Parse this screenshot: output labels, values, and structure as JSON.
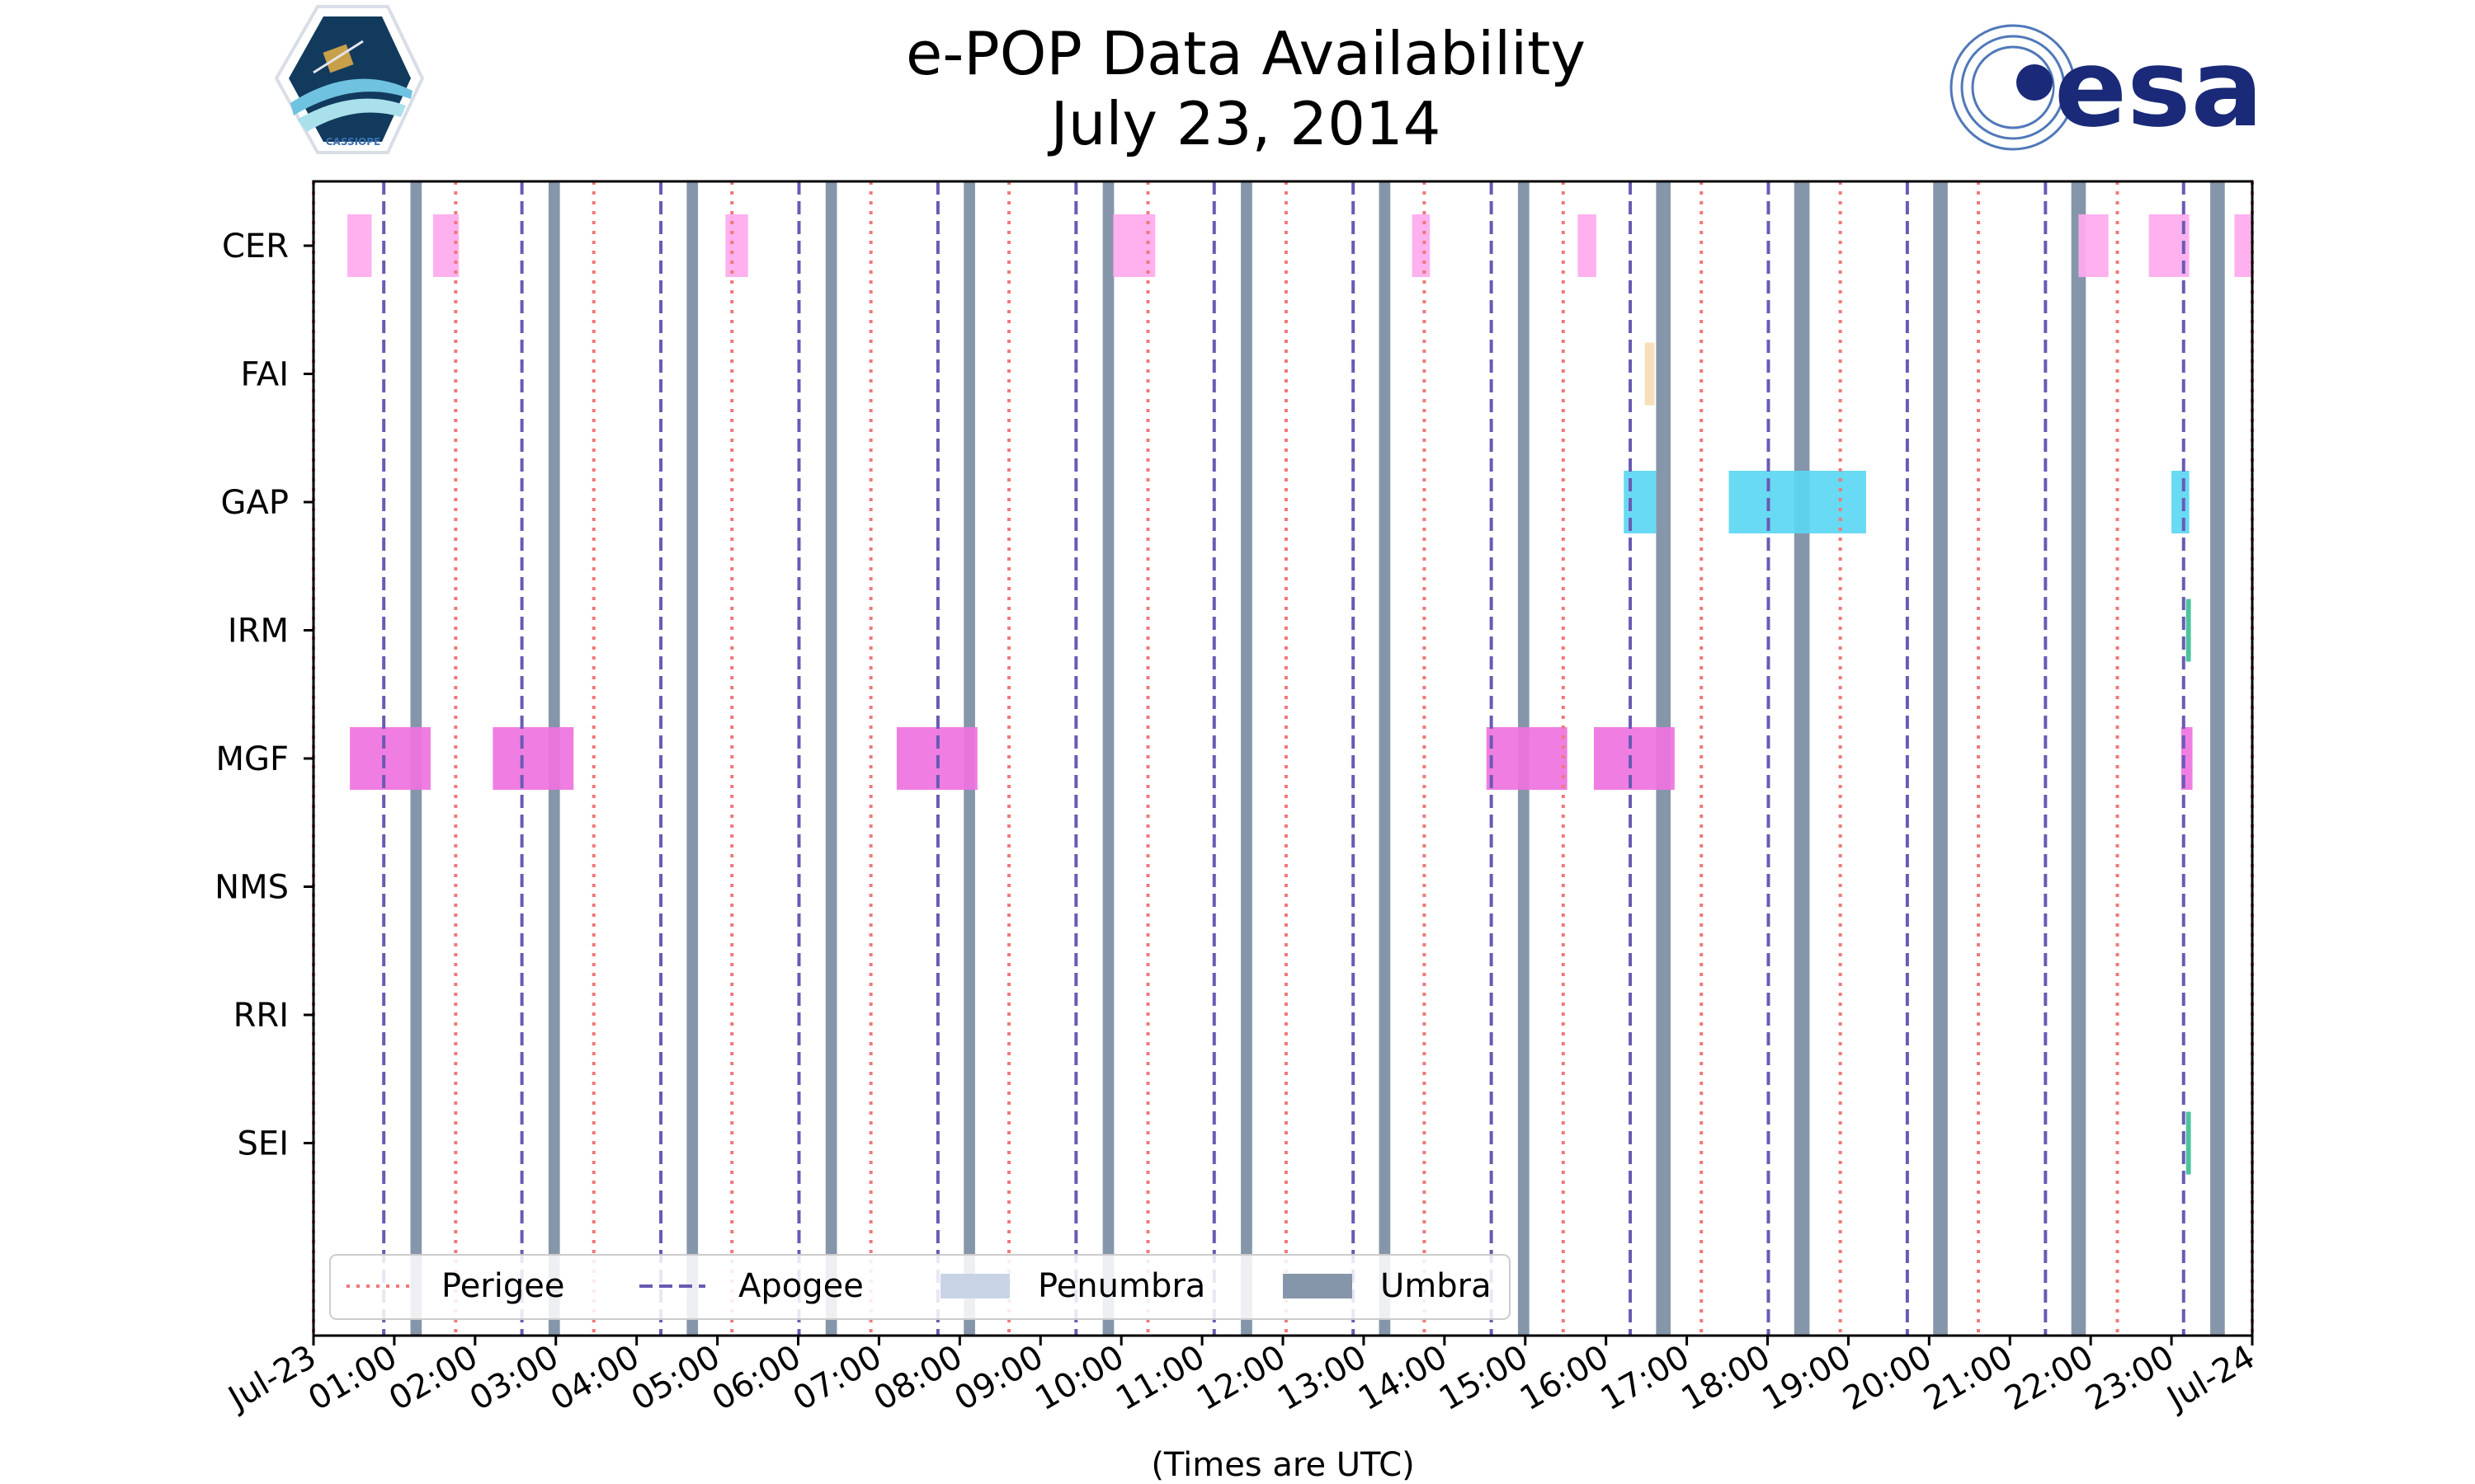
{
  "chart_data": {
    "type": "timeline",
    "title": "e-POP Data Availability",
    "subtitle": "July 23, 2014",
    "xlabel": "(Times are UTC)",
    "x_range_hours": [
      0,
      24
    ],
    "x_tick_labels": [
      "Jul-23",
      "01:00",
      "02:00",
      "03:00",
      "04:00",
      "05:00",
      "06:00",
      "07:00",
      "08:00",
      "09:00",
      "10:00",
      "11:00",
      "12:00",
      "13:00",
      "14:00",
      "15:00",
      "16:00",
      "17:00",
      "18:00",
      "19:00",
      "20:00",
      "21:00",
      "22:00",
      "23:00",
      "Jul-24"
    ],
    "instruments": [
      "CER",
      "FAI",
      "GAP",
      "IRM",
      "MGF",
      "NMS",
      "RRI",
      "SEI"
    ],
    "colors": {
      "CER": "#ffaaee",
      "FAI": "#f5dcb4",
      "GAP": "#5bd7f2",
      "IRM": "#3fbf94",
      "MGF": "#ef73df",
      "NMS": "#999999",
      "RRI": "#999999",
      "SEI": "#3fbf94",
      "perigee": "#f07878",
      "apogee": "#6a5ab4",
      "penumbra": "#c8d4e6",
      "umbra": "#8696aa"
    },
    "coverage": {
      "CER": [
        [
          0.42,
          0.72
        ],
        [
          1.48,
          1.8
        ],
        [
          5.1,
          5.38
        ],
        [
          9.9,
          10.42
        ],
        [
          13.6,
          13.82
        ],
        [
          15.65,
          15.88
        ],
        [
          21.85,
          22.22
        ],
        [
          22.72,
          23.22
        ],
        [
          23.78,
          24.0
        ]
      ],
      "FAI": [
        [
          16.48,
          16.6
        ]
      ],
      "GAP": [
        [
          16.22,
          16.62
        ],
        [
          17.52,
          19.22
        ],
        [
          23.0,
          23.22
        ]
      ],
      "IRM": [
        [
          23.18,
          23.24
        ]
      ],
      "MGF": [
        [
          0.45,
          1.45
        ],
        [
          2.22,
          3.22
        ],
        [
          7.22,
          8.22
        ],
        [
          14.52,
          15.52
        ],
        [
          15.85,
          16.85
        ],
        [
          23.12,
          23.26
        ]
      ],
      "NMS": [],
      "RRI": [],
      "SEI": [
        [
          23.18,
          23.24
        ]
      ]
    },
    "perigee_hours": [
      0.0,
      1.76,
      3.47,
      5.18,
      6.9,
      8.61,
      10.33,
      12.04,
      13.75,
      15.47,
      17.18,
      18.9,
      20.61,
      22.33,
      24.0
    ],
    "apogee_hours": [
      0.87,
      2.58,
      4.3,
      6.01,
      7.73,
      9.44,
      11.15,
      12.87,
      14.58,
      16.3,
      18.01,
      19.73,
      21.44,
      23.15
    ],
    "umbra_intervals_hours": [
      [
        1.2,
        1.34
      ],
      [
        2.91,
        3.05
      ],
      [
        4.62,
        4.76
      ],
      [
        6.34,
        6.48
      ],
      [
        8.05,
        8.19
      ],
      [
        9.77,
        9.91
      ],
      [
        11.48,
        11.62
      ],
      [
        13.19,
        13.33
      ],
      [
        14.91,
        15.05
      ],
      [
        16.62,
        16.8
      ],
      [
        18.33,
        18.52
      ],
      [
        20.05,
        20.23
      ],
      [
        21.76,
        21.94
      ],
      [
        23.48,
        23.66
      ]
    ],
    "legend": [
      "Perigee",
      "Apogee",
      "Penumbra",
      "Umbra"
    ],
    "legend_position": "bottom-left",
    "logos": {
      "left_badge_text": "CASSIOPE",
      "right_logo_text": "esa"
    }
  }
}
